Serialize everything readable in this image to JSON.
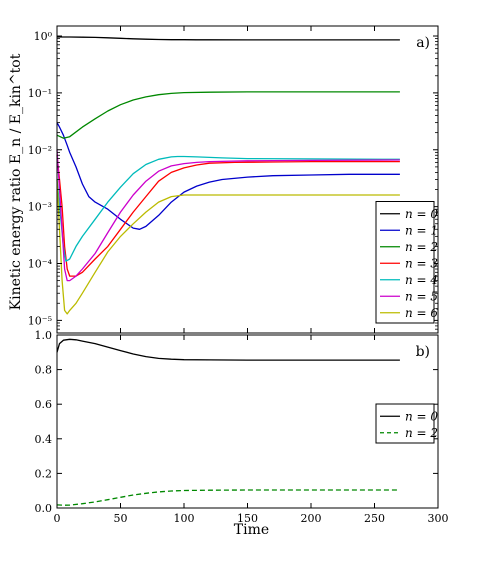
{
  "chart_data": [
    {
      "panel": "a",
      "type": "line",
      "panel_label": "a)",
      "ylabel": "Kinetic energy ratio E_n / E_kin^tot",
      "yscale": "log",
      "ylim": [
        6e-06,
        1.5
      ],
      "xlim": [
        0,
        300
      ],
      "yticks": [
        1,
        0.1,
        0.01,
        0.001,
        0.0001,
        1e-05
      ],
      "ytick_labels": [
        "10^0",
        "10^-1",
        "10^-2",
        "10^-3",
        "10^-4",
        "10^-5"
      ],
      "legend": {
        "placement": "lower-right"
      },
      "series": [
        {
          "name": "n = 0",
          "color": "#000000",
          "dash": "solid",
          "x": [
            0,
            10,
            20,
            30,
            40,
            50,
            60,
            70,
            80,
            90,
            100,
            110,
            120,
            150,
            200,
            270
          ],
          "y": [
            0.96,
            0.96,
            0.955,
            0.945,
            0.93,
            0.91,
            0.895,
            0.88,
            0.87,
            0.863,
            0.86,
            0.858,
            0.857,
            0.856,
            0.856,
            0.856
          ]
        },
        {
          "name": "n = 1",
          "color": "#0000cc",
          "dash": "solid",
          "x": [
            0,
            2,
            5,
            8,
            10,
            15,
            20,
            25,
            30,
            40,
            50,
            60,
            65,
            70,
            80,
            90,
            100,
            110,
            120,
            130,
            150,
            170,
            200,
            230,
            270
          ],
          "y": [
            0.03,
            0.025,
            0.018,
            0.012,
            0.009,
            0.005,
            0.0025,
            0.0015,
            0.0012,
            0.0009,
            0.0006,
            0.00042,
            0.0004,
            0.00045,
            0.0007,
            0.0012,
            0.0018,
            0.0023,
            0.0027,
            0.003,
            0.0033,
            0.0035,
            0.0036,
            0.0037,
            0.0037
          ]
        },
        {
          "name": "n = 2",
          "color": "#008800",
          "dash": "solid",
          "x": [
            0,
            5,
            10,
            20,
            30,
            40,
            50,
            60,
            70,
            80,
            90,
            100,
            120,
            150,
            200,
            270
          ],
          "y": [
            0.018,
            0.016,
            0.017,
            0.025,
            0.035,
            0.048,
            0.062,
            0.075,
            0.085,
            0.093,
            0.098,
            0.101,
            0.103,
            0.104,
            0.104,
            0.104
          ]
        },
        {
          "name": "n = 3",
          "color": "#ff0000",
          "dash": "solid",
          "x": [
            0,
            2,
            4,
            6,
            8,
            10,
            15,
            20,
            30,
            40,
            50,
            60,
            70,
            80,
            90,
            100,
            110,
            120,
            140,
            170,
            200,
            270
          ],
          "y": [
            0.008,
            0.003,
            0.001,
            0.0002,
            8e-05,
            6e-05,
            6e-05,
            7e-05,
            0.00012,
            0.0002,
            0.0004,
            0.0008,
            0.0015,
            0.0028,
            0.004,
            0.0048,
            0.0054,
            0.0058,
            0.006,
            0.0061,
            0.0062,
            0.0062
          ]
        },
        {
          "name": "n = 4",
          "color": "#00bbbb",
          "dash": "solid",
          "x": [
            0,
            3,
            5,
            7,
            10,
            15,
            20,
            30,
            40,
            50,
            60,
            70,
            80,
            90,
            95,
            100,
            110,
            130,
            150,
            200,
            270
          ],
          "y": [
            0.003,
            0.0006,
            0.0002,
            0.00011,
            0.00012,
            0.0002,
            0.0003,
            0.0006,
            0.0012,
            0.0022,
            0.0038,
            0.0055,
            0.0068,
            0.0075,
            0.0076,
            0.0076,
            0.0075,
            0.0072,
            0.007,
            0.0069,
            0.0068
          ]
        },
        {
          "name": "n = 5",
          "color": "#cc00cc",
          "dash": "solid",
          "x": [
            0,
            2,
            4,
            6,
            8,
            10,
            15,
            20,
            30,
            40,
            50,
            60,
            70,
            80,
            90,
            100,
            110,
            120,
            150,
            200,
            270
          ],
          "y": [
            0.01,
            0.002,
            0.0004,
            8e-05,
            5e-05,
            5e-05,
            6e-05,
            8e-05,
            0.00015,
            0.00035,
            0.0008,
            0.0016,
            0.0028,
            0.0042,
            0.0052,
            0.0057,
            0.006,
            0.0062,
            0.0064,
            0.0065,
            0.0066
          ]
        },
        {
          "name": "n = 6",
          "color": "#bbbb00",
          "dash": "solid",
          "x": [
            0,
            2,
            4,
            6,
            8,
            10,
            15,
            20,
            30,
            40,
            50,
            60,
            70,
            80,
            90,
            100,
            120,
            150,
            200,
            270
          ],
          "y": [
            0.003,
            0.0004,
            5e-05,
            1.5e-05,
            1.3e-05,
            1.5e-05,
            2e-05,
            3e-05,
            7e-05,
            0.00016,
            0.0003,
            0.0005,
            0.0008,
            0.0012,
            0.0015,
            0.0016,
            0.0016,
            0.0016,
            0.0016,
            0.0016
          ]
        }
      ]
    },
    {
      "panel": "b",
      "type": "line",
      "panel_label": "b)",
      "xlabel": "Time",
      "yscale": "linear",
      "ylim": [
        0,
        1.0
      ],
      "xlim": [
        0,
        300
      ],
      "yticks": [
        0.0,
        0.2,
        0.4,
        0.6,
        0.8,
        1.0
      ],
      "ytick_labels": [
        "0.0",
        "0.2",
        "0.4",
        "0.6",
        "0.8",
        "1.0"
      ],
      "xticks": [
        0,
        50,
        100,
        150,
        200,
        250,
        300
      ],
      "xtick_labels": [
        "0",
        "50",
        "100",
        "150",
        "200",
        "250",
        "300"
      ],
      "legend": {
        "placement": "center-right"
      },
      "series": [
        {
          "name": "n = 0",
          "color": "#000000",
          "dash": "solid",
          "x": [
            0,
            2,
            5,
            10,
            15,
            20,
            30,
            40,
            50,
            60,
            70,
            80,
            90,
            100,
            120,
            150,
            200,
            270
          ],
          "y": [
            0.9,
            0.95,
            0.97,
            0.975,
            0.972,
            0.965,
            0.95,
            0.93,
            0.91,
            0.89,
            0.875,
            0.865,
            0.86,
            0.857,
            0.856,
            0.855,
            0.855,
            0.855
          ]
        },
        {
          "name": "n = 2",
          "color": "#008800",
          "dash": "dashed",
          "x": [
            0,
            5,
            10,
            20,
            30,
            40,
            50,
            60,
            70,
            80,
            90,
            100,
            120,
            150,
            200,
            270
          ],
          "y": [
            0.018,
            0.016,
            0.017,
            0.025,
            0.035,
            0.048,
            0.062,
            0.075,
            0.085,
            0.093,
            0.098,
            0.101,
            0.103,
            0.104,
            0.104,
            0.104
          ]
        }
      ]
    }
  ]
}
